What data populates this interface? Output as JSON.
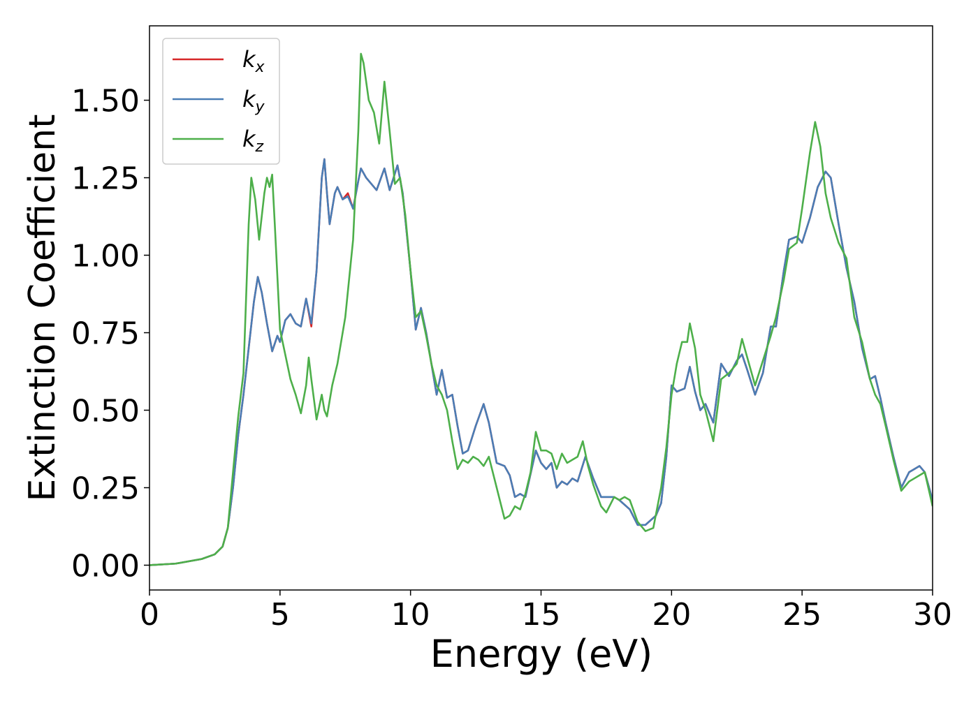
{
  "chart_data": {
    "type": "line",
    "xlabel": "Energy (eV)",
    "ylabel": "Extinction Coefficient",
    "xlim": [
      0,
      30
    ],
    "ylim": [
      -0.08,
      1.74
    ],
    "xticks": [
      0,
      5,
      10,
      15,
      20,
      25,
      30
    ],
    "yticks": [
      {
        "value": 0,
        "label": "0.00"
      },
      {
        "value": 0.25,
        "label": "0.25"
      },
      {
        "value": 0.5,
        "label": "0.50"
      },
      {
        "value": 0.75,
        "label": "0.75"
      },
      {
        "value": 1,
        "label": "1.00"
      },
      {
        "value": 1.25,
        "label": "1.25"
      },
      {
        "value": 1.5,
        "label": "1.50"
      }
    ],
    "legend": "upper left",
    "series": [
      {
        "name": "kx",
        "color": "#d62728",
        "x": [
          0,
          1,
          2,
          2.5,
          2.8,
          3.0,
          3.2,
          3.4,
          3.6,
          3.8,
          4.0,
          4.15,
          4.3,
          4.5,
          4.7,
          4.9,
          5.0,
          5.2,
          5.4,
          5.6,
          5.8,
          6.0,
          6.2,
          6.4,
          6.6,
          6.7,
          6.8,
          6.9,
          7.1,
          7.2,
          7.4,
          7.6,
          7.8,
          8.0,
          8.1,
          8.3,
          8.5,
          8.7,
          9.0,
          9.2,
          9.5,
          9.7,
          10.0,
          10.2,
          10.4,
          10.6,
          10.8,
          11.0,
          11.2,
          11.4,
          11.6,
          11.8,
          12.0,
          12.2,
          12.5,
          12.8,
          13.0,
          13.3,
          13.6,
          13.8,
          14.0,
          14.2,
          14.4,
          14.8,
          15.0,
          15.2,
          15.4,
          15.6,
          15.8,
          16.0,
          16.2,
          16.4,
          16.7,
          17.0,
          17.3,
          17.8,
          18.0,
          18.4,
          18.7,
          19.0,
          19.4,
          19.6,
          19.8,
          20.0,
          20.2,
          20.5,
          20.7,
          20.9,
          21.1,
          21.3,
          21.6,
          21.9,
          22.2,
          22.5,
          22.7,
          22.9,
          23.2,
          23.5,
          23.8,
          24.0,
          24.3,
          24.5,
          24.8,
          25.0,
          25.3,
          25.6,
          25.9,
          26.1,
          26.4,
          26.7,
          27.0,
          27.3,
          27.6,
          27.8,
          28.0,
          28.2,
          28.5,
          28.8,
          29.1,
          29.3,
          29.5,
          29.7,
          30.0
        ],
        "values": [
          0,
          0.005,
          0.02,
          0.035,
          0.06,
          0.12,
          0.25,
          0.42,
          0.55,
          0.7,
          0.85,
          0.93,
          0.88,
          0.78,
          0.69,
          0.74,
          0.72,
          0.79,
          0.81,
          0.78,
          0.77,
          0.86,
          0.77,
          0.95,
          1.25,
          1.31,
          1.2,
          1.1,
          1.2,
          1.22,
          1.18,
          1.2,
          1.15,
          1.24,
          1.28,
          1.25,
          1.23,
          1.21,
          1.28,
          1.21,
          1.29,
          1.2,
          0.95,
          0.76,
          0.83,
          0.75,
          0.65,
          0.55,
          0.63,
          0.54,
          0.55,
          0.45,
          0.36,
          0.37,
          0.45,
          0.52,
          0.46,
          0.33,
          0.32,
          0.29,
          0.22,
          0.23,
          0.22,
          0.37,
          0.33,
          0.31,
          0.33,
          0.25,
          0.27,
          0.26,
          0.28,
          0.27,
          0.35,
          0.28,
          0.22,
          0.22,
          0.21,
          0.18,
          0.13,
          0.13,
          0.16,
          0.2,
          0.35,
          0.58,
          0.56,
          0.57,
          0.64,
          0.56,
          0.5,
          0.52,
          0.46,
          0.65,
          0.61,
          0.66,
          0.68,
          0.63,
          0.55,
          0.62,
          0.77,
          0.77,
          0.95,
          1.05,
          1.06,
          1.04,
          1.12,
          1.22,
          1.27,
          1.25,
          1.1,
          0.96,
          0.85,
          0.7,
          0.6,
          0.61,
          0.54,
          0.46,
          0.35,
          0.25,
          0.3,
          0.31,
          0.32,
          0.3,
          0.21
        ]
      },
      {
        "name": "ky",
        "color": "#4a7db5",
        "x": [
          0,
          1,
          2,
          2.5,
          2.8,
          3.0,
          3.2,
          3.4,
          3.6,
          3.8,
          4.0,
          4.15,
          4.3,
          4.5,
          4.7,
          4.9,
          5.0,
          5.2,
          5.4,
          5.6,
          5.8,
          6.0,
          6.2,
          6.4,
          6.6,
          6.7,
          6.8,
          6.9,
          7.1,
          7.2,
          7.4,
          7.6,
          7.8,
          8.0,
          8.1,
          8.3,
          8.5,
          8.7,
          9.0,
          9.2,
          9.5,
          9.7,
          10.0,
          10.2,
          10.4,
          10.6,
          10.8,
          11.0,
          11.2,
          11.4,
          11.6,
          11.8,
          12.0,
          12.2,
          12.5,
          12.8,
          13.0,
          13.3,
          13.6,
          13.8,
          14.0,
          14.2,
          14.4,
          14.8,
          15.0,
          15.2,
          15.4,
          15.6,
          15.8,
          16.0,
          16.2,
          16.4,
          16.7,
          17.0,
          17.3,
          17.8,
          18.0,
          18.4,
          18.7,
          19.0,
          19.4,
          19.6,
          19.8,
          20.0,
          20.2,
          20.5,
          20.7,
          20.9,
          21.1,
          21.3,
          21.6,
          21.9,
          22.2,
          22.5,
          22.7,
          22.9,
          23.2,
          23.5,
          23.8,
          24.0,
          24.3,
          24.5,
          24.8,
          25.0,
          25.3,
          25.6,
          25.9,
          26.1,
          26.4,
          26.7,
          27.0,
          27.3,
          27.6,
          27.8,
          28.0,
          28.2,
          28.5,
          28.8,
          29.1,
          29.3,
          29.5,
          29.7,
          30.0
        ],
        "values": [
          0,
          0.005,
          0.02,
          0.035,
          0.06,
          0.12,
          0.25,
          0.42,
          0.55,
          0.7,
          0.85,
          0.93,
          0.88,
          0.78,
          0.69,
          0.74,
          0.72,
          0.79,
          0.81,
          0.78,
          0.77,
          0.86,
          0.78,
          0.95,
          1.25,
          1.31,
          1.2,
          1.1,
          1.2,
          1.22,
          1.18,
          1.19,
          1.15,
          1.24,
          1.28,
          1.25,
          1.23,
          1.21,
          1.28,
          1.21,
          1.29,
          1.2,
          0.95,
          0.76,
          0.83,
          0.75,
          0.65,
          0.55,
          0.63,
          0.54,
          0.55,
          0.45,
          0.36,
          0.37,
          0.45,
          0.52,
          0.46,
          0.33,
          0.32,
          0.29,
          0.22,
          0.23,
          0.22,
          0.37,
          0.33,
          0.31,
          0.33,
          0.25,
          0.27,
          0.26,
          0.28,
          0.27,
          0.35,
          0.28,
          0.22,
          0.22,
          0.21,
          0.18,
          0.13,
          0.13,
          0.16,
          0.2,
          0.35,
          0.58,
          0.56,
          0.57,
          0.64,
          0.56,
          0.5,
          0.52,
          0.46,
          0.65,
          0.61,
          0.66,
          0.68,
          0.63,
          0.55,
          0.62,
          0.77,
          0.77,
          0.95,
          1.05,
          1.06,
          1.04,
          1.12,
          1.22,
          1.27,
          1.25,
          1.1,
          0.96,
          0.85,
          0.7,
          0.6,
          0.61,
          0.54,
          0.46,
          0.35,
          0.25,
          0.3,
          0.31,
          0.32,
          0.3,
          0.21
        ]
      },
      {
        "name": "kz",
        "color": "#4daf4a",
        "x": [
          0,
          1,
          2,
          2.5,
          2.8,
          3.0,
          3.2,
          3.4,
          3.6,
          3.8,
          3.9,
          4.05,
          4.2,
          4.4,
          4.5,
          4.6,
          4.7,
          4.8,
          5.0,
          5.2,
          5.4,
          5.6,
          5.8,
          6.0,
          6.1,
          6.2,
          6.4,
          6.6,
          6.7,
          6.8,
          7.0,
          7.2,
          7.5,
          7.8,
          8.0,
          8.1,
          8.2,
          8.4,
          8.6,
          8.8,
          9.0,
          9.2,
          9.4,
          9.6,
          9.8,
          10.0,
          10.2,
          10.4,
          10.6,
          10.8,
          11.0,
          11.2,
          11.4,
          11.6,
          11.8,
          12.0,
          12.2,
          12.4,
          12.6,
          12.8,
          13.0,
          13.3,
          13.6,
          13.8,
          14.0,
          14.2,
          14.4,
          14.6,
          14.8,
          15.0,
          15.2,
          15.4,
          15.6,
          15.8,
          16.0,
          16.2,
          16.4,
          16.6,
          16.8,
          17.0,
          17.3,
          17.5,
          17.8,
          18.0,
          18.2,
          18.4,
          18.7,
          19.0,
          19.3,
          19.6,
          19.8,
          20.0,
          20.2,
          20.4,
          20.6,
          20.7,
          20.9,
          21.1,
          21.3,
          21.6,
          21.9,
          22.2,
          22.5,
          22.7,
          22.9,
          23.2,
          23.5,
          23.8,
          24.0,
          24.3,
          24.5,
          24.8,
          25.0,
          25.3,
          25.5,
          25.7,
          25.9,
          26.1,
          26.4,
          26.7,
          27.0,
          27.3,
          27.6,
          27.8,
          28.0,
          28.2,
          28.5,
          28.8,
          29.1,
          29.3,
          29.5,
          29.7,
          30.0
        ],
        "values": [
          0,
          0.005,
          0.02,
          0.035,
          0.06,
          0.12,
          0.3,
          0.48,
          0.62,
          1.1,
          1.25,
          1.18,
          1.05,
          1.2,
          1.25,
          1.22,
          1.26,
          1.1,
          0.76,
          0.68,
          0.6,
          0.55,
          0.49,
          0.58,
          0.67,
          0.6,
          0.47,
          0.55,
          0.5,
          0.48,
          0.58,
          0.65,
          0.8,
          1.05,
          1.4,
          1.65,
          1.62,
          1.5,
          1.46,
          1.36,
          1.56,
          1.4,
          1.23,
          1.25,
          1.13,
          0.95,
          0.8,
          0.82,
          0.74,
          0.65,
          0.58,
          0.55,
          0.5,
          0.4,
          0.31,
          0.34,
          0.33,
          0.35,
          0.34,
          0.32,
          0.35,
          0.25,
          0.15,
          0.16,
          0.19,
          0.18,
          0.23,
          0.3,
          0.43,
          0.37,
          0.37,
          0.36,
          0.31,
          0.36,
          0.33,
          0.34,
          0.35,
          0.4,
          0.32,
          0.26,
          0.19,
          0.17,
          0.22,
          0.21,
          0.22,
          0.21,
          0.14,
          0.11,
          0.12,
          0.25,
          0.38,
          0.55,
          0.65,
          0.72,
          0.72,
          0.78,
          0.7,
          0.55,
          0.5,
          0.4,
          0.6,
          0.62,
          0.65,
          0.73,
          0.67,
          0.58,
          0.66,
          0.74,
          0.8,
          0.92,
          1.02,
          1.04,
          1.15,
          1.33,
          1.43,
          1.35,
          1.2,
          1.12,
          1.04,
          0.99,
          0.8,
          0.72,
          0.6,
          0.55,
          0.52,
          0.45,
          0.34,
          0.24,
          0.27,
          0.28,
          0.29,
          0.3,
          0.19
        ]
      }
    ]
  }
}
